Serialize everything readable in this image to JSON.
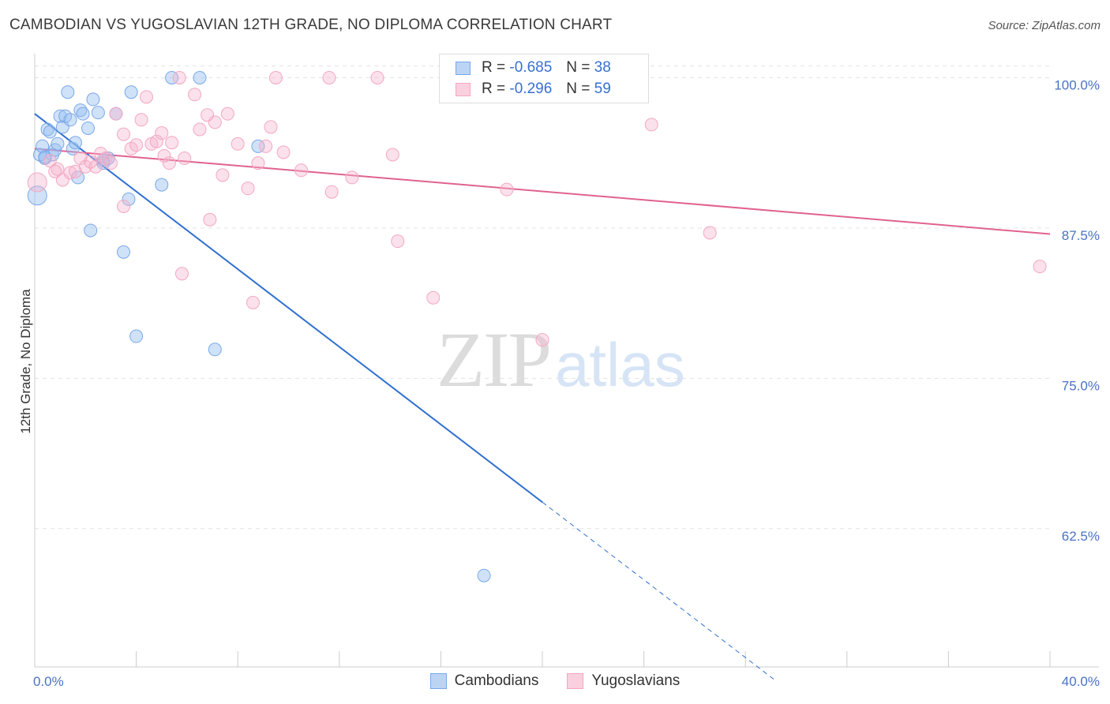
{
  "chart_data": {
    "type": "scatter",
    "title": "CAMBODIAN VS YUGOSLAVIAN 12TH GRADE, NO DIPLOMA CORRELATION CHART",
    "source": "Source: ZipAtlas.com",
    "xlabel": "",
    "ylabel": "12th Grade, No Diploma",
    "xlim": [
      0,
      40
    ],
    "ylim": [
      51,
      102
    ],
    "x_tick_labels": [
      "0.0%",
      "40.0%"
    ],
    "y_ticks": [
      62.5,
      75.0,
      87.5,
      100.0
    ],
    "y_tick_labels": [
      "62.5%",
      "75.0%",
      "87.5%",
      "100.0%"
    ],
    "grid": true,
    "legend_position": "top-center",
    "watermark": {
      "part1": "ZIP",
      "part2": "atlas"
    },
    "series": [
      {
        "name": "Cambodians",
        "color": "#7aa8e8",
        "line_color": "#2f6fd0",
        "R": "-0.685",
        "N": "38",
        "trend": {
          "x0": 0.0,
          "y0": 97.0,
          "x1": 20.0,
          "y1": 64.7,
          "x_dash_end": 29.2
        },
        "points": [
          [
            0.1,
            90.2
          ],
          [
            0.2,
            93.6
          ],
          [
            0.3,
            94.3
          ],
          [
            0.4,
            93.3
          ],
          [
            0.5,
            95.7
          ],
          [
            0.6,
            95.5
          ],
          [
            0.7,
            93.6
          ],
          [
            0.8,
            94.0
          ],
          [
            0.9,
            94.5
          ],
          [
            1.0,
            96.8
          ],
          [
            1.1,
            95.9
          ],
          [
            1.2,
            96.8
          ],
          [
            1.3,
            98.8
          ],
          [
            1.4,
            96.5
          ],
          [
            1.5,
            94.1
          ],
          [
            1.6,
            94.6
          ],
          [
            1.7,
            91.7
          ],
          [
            1.8,
            97.3
          ],
          [
            1.9,
            97.0
          ],
          [
            2.1,
            95.8
          ],
          [
            2.2,
            87.3
          ],
          [
            2.3,
            98.2
          ],
          [
            2.5,
            97.1
          ],
          [
            2.7,
            93.1
          ],
          [
            2.9,
            93.3
          ],
          [
            3.2,
            97.0
          ],
          [
            3.5,
            85.5
          ],
          [
            3.7,
            89.9
          ],
          [
            3.8,
            98.8
          ],
          [
            4.0,
            78.5
          ],
          [
            5.0,
            91.1
          ],
          [
            5.4,
            100.0
          ],
          [
            6.5,
            100.0
          ],
          [
            7.1,
            77.4
          ],
          [
            8.8,
            94.3
          ],
          [
            17.7,
            58.6
          ],
          [
            0.4,
            93.4
          ],
          [
            2.7,
            92.9
          ]
        ]
      },
      {
        "name": "Yugoslavians",
        "color": "#f4a7c1",
        "line_color": "#e0628e",
        "R": "-0.296",
        "N": "59",
        "trend": {
          "x0": 0.0,
          "y0": 94.1,
          "x1": 40.0,
          "y1": 87.0
        },
        "points": [
          [
            0.1,
            91.3
          ],
          [
            0.6,
            93.1
          ],
          [
            0.9,
            92.4
          ],
          [
            1.1,
            91.5
          ],
          [
            1.4,
            92.1
          ],
          [
            1.6,
            92.2
          ],
          [
            1.8,
            93.3
          ],
          [
            2.0,
            92.6
          ],
          [
            2.2,
            93.0
          ],
          [
            2.4,
            92.6
          ],
          [
            2.6,
            93.7
          ],
          [
            2.8,
            93.3
          ],
          [
            3.0,
            92.9
          ],
          [
            3.2,
            97.0
          ],
          [
            3.5,
            95.3
          ],
          [
            3.5,
            89.3
          ],
          [
            3.8,
            94.1
          ],
          [
            4.0,
            94.4
          ],
          [
            4.2,
            96.5
          ],
          [
            4.4,
            98.4
          ],
          [
            4.6,
            94.5
          ],
          [
            4.8,
            94.7
          ],
          [
            5.0,
            95.4
          ],
          [
            5.1,
            93.5
          ],
          [
            5.3,
            92.9
          ],
          [
            5.4,
            94.6
          ],
          [
            5.7,
            100.0
          ],
          [
            5.8,
            83.7
          ],
          [
            5.9,
            93.3
          ],
          [
            6.3,
            98.6
          ],
          [
            6.5,
            95.7
          ],
          [
            6.8,
            96.9
          ],
          [
            6.9,
            88.2
          ],
          [
            7.1,
            96.3
          ],
          [
            7.4,
            91.9
          ],
          [
            7.6,
            97.0
          ],
          [
            8.0,
            94.5
          ],
          [
            8.4,
            90.8
          ],
          [
            8.6,
            81.3
          ],
          [
            8.8,
            92.9
          ],
          [
            9.1,
            94.3
          ],
          [
            9.3,
            95.9
          ],
          [
            9.5,
            100.0
          ],
          [
            9.8,
            93.8
          ],
          [
            10.5,
            92.3
          ],
          [
            11.6,
            100.0
          ],
          [
            11.7,
            90.5
          ],
          [
            12.5,
            91.7
          ],
          [
            13.5,
            100.0
          ],
          [
            14.1,
            93.6
          ],
          [
            14.3,
            86.4
          ],
          [
            15.7,
            81.7
          ],
          [
            18.6,
            90.7
          ],
          [
            20.0,
            78.2
          ],
          [
            20.8,
            99.4
          ],
          [
            24.3,
            96.1
          ],
          [
            26.6,
            87.1
          ],
          [
            39.6,
            84.3
          ],
          [
            0.8,
            92.2
          ]
        ]
      }
    ]
  }
}
